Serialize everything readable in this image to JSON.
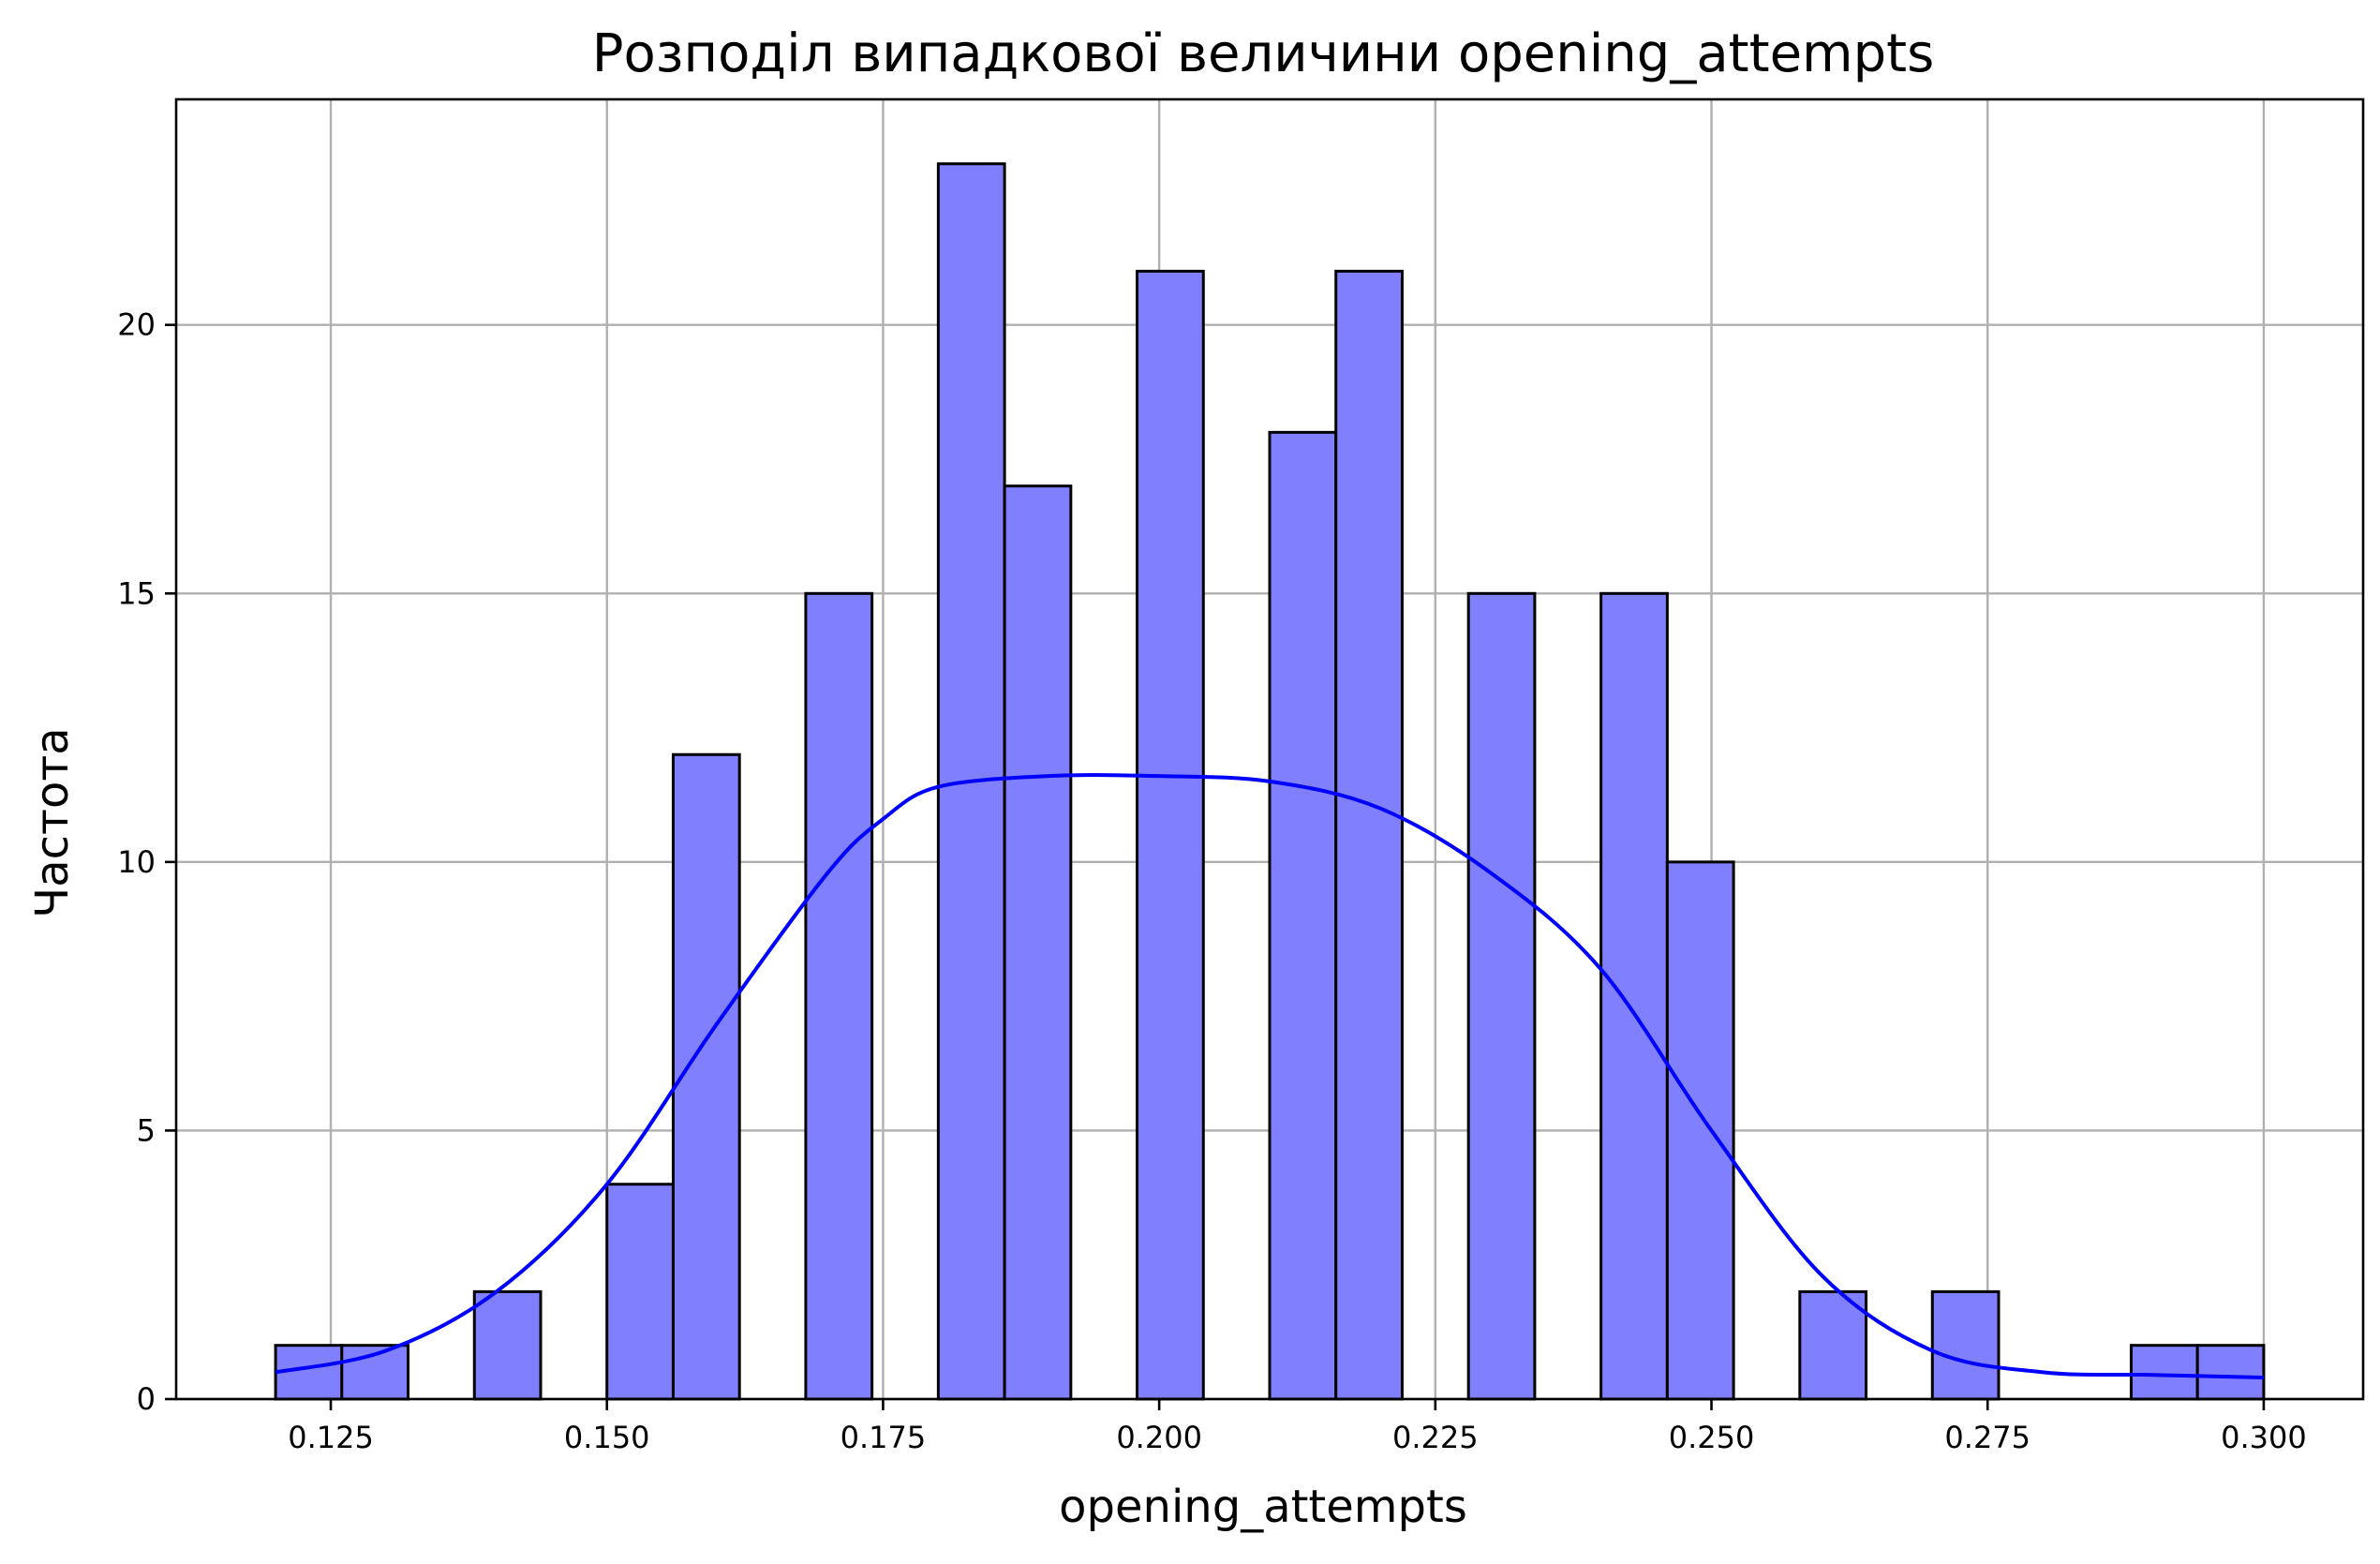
{
  "chart_data": {
    "type": "bar",
    "title": "Розподіл випадкової величини opening_attempts",
    "xlabel": "opening_attempts",
    "ylabel": "Частота",
    "xlim": [
      0.111,
      0.309
    ],
    "ylim": [
      0,
      24.2
    ],
    "grid": true,
    "bar_color": "#8080ff",
    "edge_color": "#000000",
    "kde_color": "#0000ff",
    "bin_edges_start": 0.12,
    "bin_width": 0.006,
    "values": [
      1,
      1,
      0,
      2,
      0,
      4,
      12,
      0,
      15,
      0,
      23,
      17,
      0,
      21,
      0,
      18,
      21,
      0,
      15,
      0,
      15,
      10,
      0,
      2,
      0,
      2,
      0,
      0,
      1,
      1
    ],
    "kde_curve": {
      "x": [
        0.12,
        0.13,
        0.14,
        0.15,
        0.16,
        0.17,
        0.175,
        0.18,
        0.19,
        0.2,
        0.21,
        0.22,
        0.23,
        0.24,
        0.25,
        0.26,
        0.27,
        0.28,
        0.29,
        0.3
      ],
      "y": [
        0.5,
        0.9,
        2.0,
        4.0,
        7.0,
        9.8,
        10.8,
        11.4,
        11.6,
        11.6,
        11.5,
        11.0,
        9.8,
        8.0,
        5.0,
        2.3,
        0.9,
        0.5,
        0.45,
        0.4
      ]
    },
    "xticks": [
      0.125,
      0.15,
      0.175,
      0.2,
      0.225,
      0.25,
      0.275,
      0.3
    ],
    "xtick_labels": [
      "0.125",
      "0.150",
      "0.175",
      "0.200",
      "0.225",
      "0.250",
      "0.275",
      "0.300"
    ],
    "yticks": [
      0,
      5,
      10,
      15,
      20
    ],
    "ytick_labels": [
      "0",
      "5",
      "10",
      "15",
      "20"
    ]
  }
}
